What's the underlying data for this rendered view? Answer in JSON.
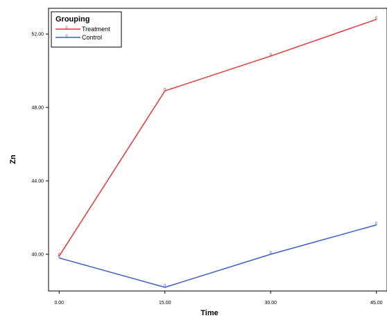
{
  "chart_data": {
    "type": "line",
    "xlabel": "Time",
    "ylabel": "Zn",
    "x": [
      0,
      15,
      30,
      45
    ],
    "x_tick_labels": [
      "0.00",
      "15.00",
      "30.00",
      "45.00"
    ],
    "xlim": [
      -1.5,
      46.5
    ],
    "y_ticks": [
      40,
      44,
      48,
      52
    ],
    "y_tick_labels": [
      "40.00",
      "44.00",
      "48.00",
      "52.00"
    ],
    "ylim": [
      38.0,
      53.4
    ],
    "grid": false,
    "legend": {
      "title": "Grouping",
      "placement": "top-left"
    },
    "series": [
      {
        "name": "Treatment",
        "color": "#e8323c",
        "values": [
          39.9,
          48.9,
          50.8,
          52.8
        ]
      },
      {
        "name": "Control",
        "color": "#3a5bc7",
        "values": [
          39.8,
          38.2,
          40.0,
          41.6
        ]
      }
    ]
  }
}
